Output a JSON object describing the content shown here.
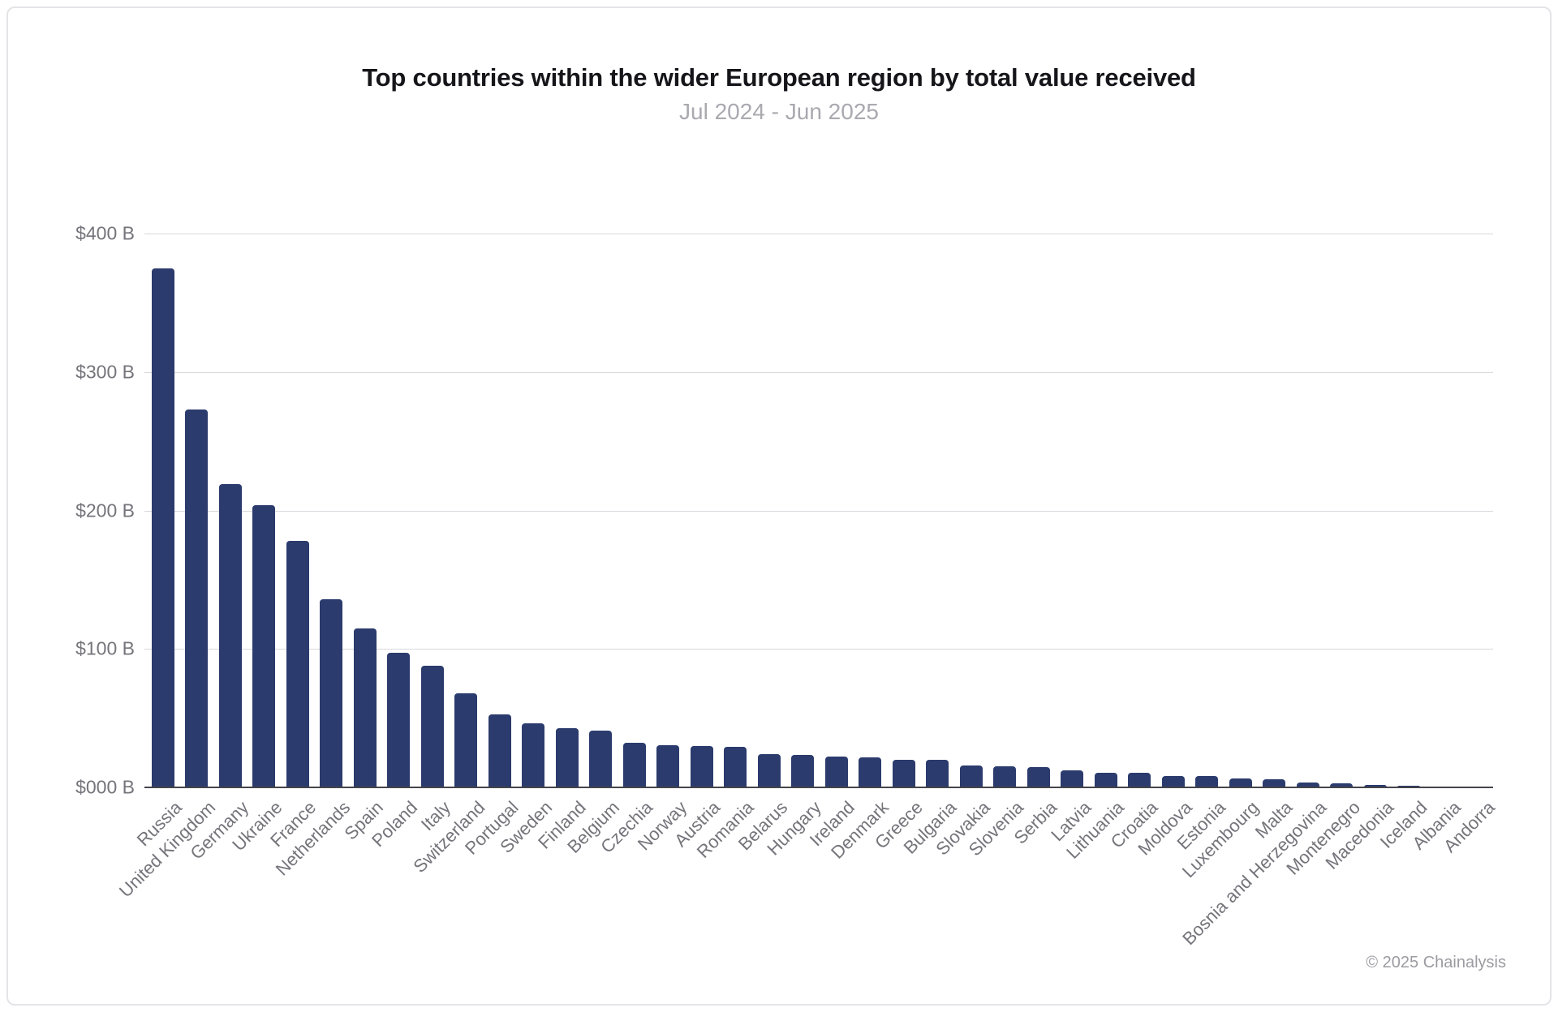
{
  "footer": {
    "copyright": "© 2025 Chainalysis"
  },
  "colors": {
    "bar": "#2b3b6d",
    "gridline": "#d9d9dd",
    "axis_line": "#45454b",
    "axis_text": "#74747b",
    "title_text": "#15151a",
    "subtitle_text": "#a9a9b0",
    "footer_text": "#9b9ba1",
    "frame_border": "#e4e4e8"
  },
  "chart_data": {
    "type": "bar",
    "title": "Top countries within the wider European region by total value received",
    "subtitle": "Jul 2024 - Jun 2025",
    "xlabel": "",
    "ylabel": "",
    "ylim": [
      0,
      400
    ],
    "grid": true,
    "legend_position": "none",
    "yticks": [
      {
        "label": "$400 B",
        "value": 400
      },
      {
        "label": "$300 B",
        "value": 300
      },
      {
        "label": "$200 B",
        "value": 200
      },
      {
        "label": "$100 B",
        "value": 100
      },
      {
        "label": "$000 B",
        "value": 0
      }
    ],
    "categories": [
      "Russia",
      "United Kingdom",
      "Germany",
      "Ukraine",
      "France",
      "Netherlands",
      "Spain",
      "Poland",
      "Italy",
      "Switzerland",
      "Portugal",
      "Sweden",
      "Finland",
      "Belgium",
      "Czechia",
      "Norway",
      "Austria",
      "Romania",
      "Belarus",
      "Hungary",
      "Ireland",
      "Denmark",
      "Greece",
      "Bulgaria",
      "Slovakia",
      "Slovenia",
      "Serbia",
      "Latvia",
      "Lithuania",
      "Croatia",
      "Moldova",
      "Estonia",
      "Luxembourg",
      "Malta",
      "Bosnia and Herzegovina",
      "Montenegro",
      "Macedonia",
      "Iceland",
      "Albania",
      "Andorra"
    ],
    "values": [
      375,
      273,
      219,
      204,
      178,
      136,
      115,
      97,
      88,
      68,
      53,
      46,
      42.5,
      41,
      32.5,
      30.5,
      30,
      29,
      24,
      23.5,
      22.5,
      21.5,
      20,
      20,
      16,
      15,
      14.8,
      12.5,
      10.5,
      10.3,
      8.2,
      8,
      6.2,
      6,
      3.4,
      3.2,
      1.8,
      0.9,
      0.8,
      0.2
    ],
    "values_unit": "USD billions"
  }
}
